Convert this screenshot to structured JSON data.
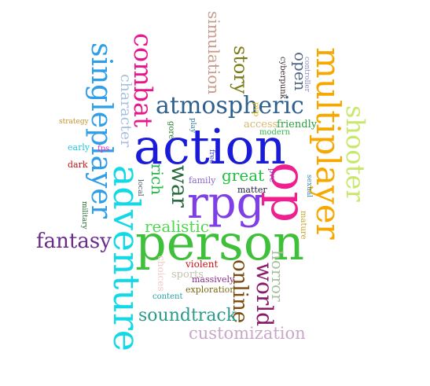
{
  "words": [
    {
      "text": "action",
      "color": "#1a1ad9"
    },
    {
      "text": "person",
      "color": "#3fc03a"
    },
    {
      "text": "rpg",
      "color": "#7e3fe6"
    },
    {
      "text": "op",
      "color": "#ee1f8f"
    },
    {
      "text": "adventure",
      "color": "#12d9e6"
    },
    {
      "text": "multiplayer",
      "color": "#f6a800"
    },
    {
      "text": "singleplayer",
      "color": "#2f9ee8"
    },
    {
      "text": "atmospheric",
      "color": "#2f5f8c"
    },
    {
      "text": "combat",
      "color": "#e8168c"
    },
    {
      "text": "shooter",
      "color": "#c8e86a"
    },
    {
      "text": "fantasy",
      "color": "#6a2b8c"
    },
    {
      "text": "war",
      "color": "#2a6b40"
    },
    {
      "text": "realistic",
      "color": "#4fd84a"
    },
    {
      "text": "world",
      "color": "#8a1a6a"
    },
    {
      "text": "online",
      "color": "#7a4a10"
    },
    {
      "text": "soundtrack",
      "color": "#2a9a8a"
    },
    {
      "text": "customization",
      "color": "#c8a8c8"
    },
    {
      "text": "story",
      "color": "#7a7a18"
    },
    {
      "text": "simulation",
      "color": "#c89a8a"
    },
    {
      "text": "open",
      "color": "#556888"
    },
    {
      "text": "horror",
      "color": "#a8c0a0"
    },
    {
      "text": "character",
      "color": "#a8c0e0"
    },
    {
      "text": "rich",
      "color": "#26b84a"
    },
    {
      "text": "great",
      "color": "#1fbf40"
    },
    {
      "text": "friendly",
      "color": "#2aa040"
    },
    {
      "text": "access",
      "color": "#d8b870"
    },
    {
      "text": "modern",
      "color": "#34b84a"
    },
    {
      "text": "matter",
      "color": "#222244"
    },
    {
      "text": "family",
      "color": "#8a6ac8"
    },
    {
      "text": "violent",
      "color": "#cc1111"
    },
    {
      "text": "sports",
      "color": "#c8c0b0"
    },
    {
      "text": "massively",
      "color": "#8a2a8a"
    },
    {
      "text": "exploration",
      "color": "#7a6a10"
    },
    {
      "text": "content",
      "color": "#2aa0a0"
    },
    {
      "text": "choices",
      "color": "#f0c8c8"
    },
    {
      "text": "fps",
      "color": "#e030b8"
    },
    {
      "text": "early",
      "color": "#22c8e0"
    },
    {
      "text": "dark",
      "color": "#c81010"
    },
    {
      "text": "strategy",
      "color": "#c89028"
    },
    {
      "text": "cyberpunk",
      "color": "#3a2a2a"
    },
    {
      "text": "controller",
      "color": "#8a8ac0"
    },
    {
      "text": "pvp",
      "color": "#e8b800"
    },
    {
      "text": "gore",
      "color": "#2a7a2a"
    },
    {
      "text": "play",
      "color": "#3a7a9a"
    },
    {
      "text": "free",
      "color": "#3a3ae0"
    },
    {
      "text": "local",
      "color": "#445566"
    },
    {
      "text": "military",
      "color": "#1a6a2a"
    },
    {
      "text": "pve",
      "color": "#8a3ac8"
    },
    {
      "text": "sexual",
      "color": "#3a8ab8"
    },
    {
      "text": "mature",
      "color": "#c8a028"
    }
  ]
}
